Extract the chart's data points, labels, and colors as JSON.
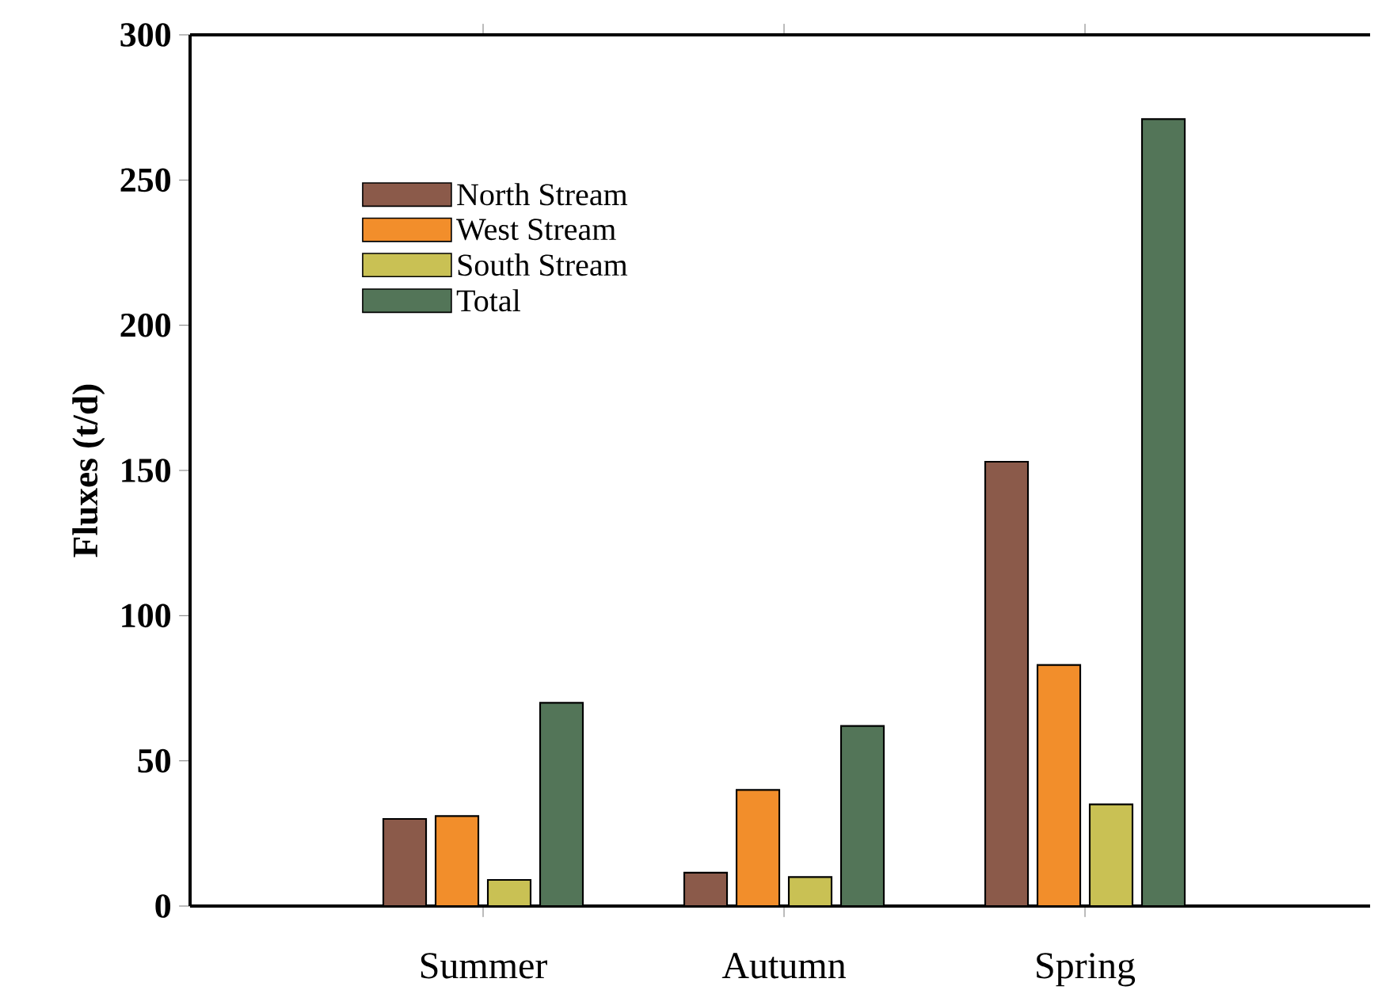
{
  "chart_data": {
    "type": "bar",
    "ylabel": "Fluxes (t/d)",
    "categories": [
      "Summer",
      "Autumn",
      "Spring"
    ],
    "series": [
      {
        "name": "North Stream",
        "color": "#8b5a4a",
        "values": [
          30,
          11.5,
          153
        ]
      },
      {
        "name": "West  Stream",
        "color": "#f28e2b",
        "values": [
          31,
          40,
          83
        ]
      },
      {
        "name": "South Stream",
        "color": "#c9c154",
        "values": [
          9,
          10,
          35
        ]
      },
      {
        "name": "Total",
        "color": "#537558",
        "values": [
          70,
          62,
          271
        ]
      }
    ],
    "ylim": [
      0,
      300
    ],
    "yticks": [
      0,
      50,
      100,
      150,
      200,
      250,
      300
    ],
    "legend": "top left"
  }
}
